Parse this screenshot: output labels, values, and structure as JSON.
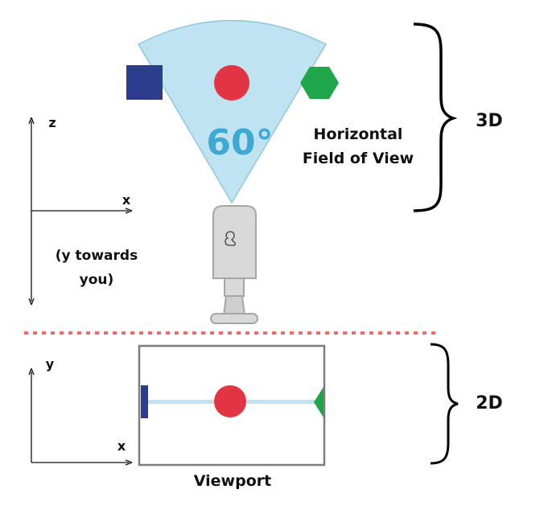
{
  "diagram": {
    "top_section": {
      "fov_angle_label": "60°",
      "fov_caption_line1": "Horizontal",
      "fov_caption_line2": "Field of View",
      "section_label": "3D",
      "axes": {
        "z_label": "z",
        "x_label": "x",
        "y_note_line1": "(y towards",
        "y_note_line2": "you)"
      }
    },
    "bottom_section": {
      "section_label": "2D",
      "viewport_caption": "Viewport",
      "axes": {
        "y_label": "y",
        "x_label": "x"
      }
    },
    "colors": {
      "fov_fill": "#bfe3f0",
      "fov_stroke": "#8fc8dc",
      "fov_text": "#3fa9d5",
      "red_circle": "#e23442",
      "blue_square": "#2b3d8c",
      "green_hexagon": "#1fa64a",
      "divider": "#f06a6a",
      "camera_body": "#d9d9d9",
      "viewport_frame": "#7d7d7d"
    }
  }
}
